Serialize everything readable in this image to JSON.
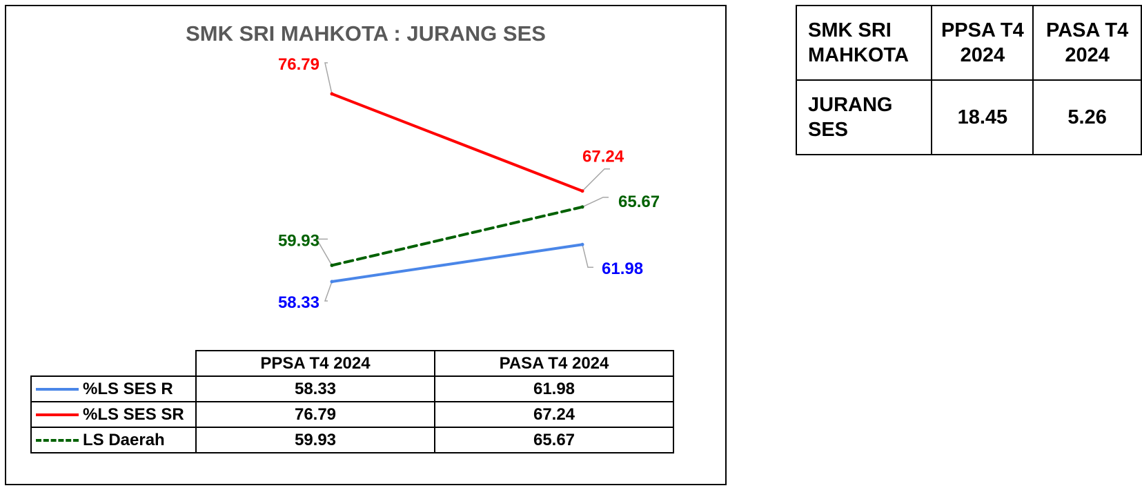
{
  "chart_data": {
    "type": "line",
    "title": "SMK SRI MAHKOTA : JURANG SES",
    "categories": [
      "PPSA T4 2024",
      "PASA T4 2024"
    ],
    "series": [
      {
        "name": "%LS SES R",
        "values": [
          58.33,
          61.98
        ],
        "color": "#4A86E8",
        "dash": false,
        "label_color": "#0000FF",
        "labels": [
          "58.33",
          "61.98"
        ]
      },
      {
        "name": "%LS SES SR",
        "values": [
          76.79,
          67.24
        ],
        "color": "#FF0000",
        "dash": false,
        "label_color": "#FF0000",
        "labels": [
          "76.79",
          "67.24"
        ]
      },
      {
        "name": "LS Daerah",
        "values": [
          59.93,
          65.67
        ],
        "color": "#006100",
        "dash": true,
        "label_color": "#006100",
        "labels": [
          "59.93",
          "65.67"
        ]
      }
    ],
    "axes_visible": false,
    "grid": false,
    "legend": "data-table-below"
  },
  "summary_table": {
    "header": [
      "SMK SRI MAHKOTA",
      "PPSA T4 2024",
      "PASA T4 2024"
    ],
    "row_label": "JURANG SES",
    "values": [
      "18.45",
      "5.26"
    ]
  }
}
